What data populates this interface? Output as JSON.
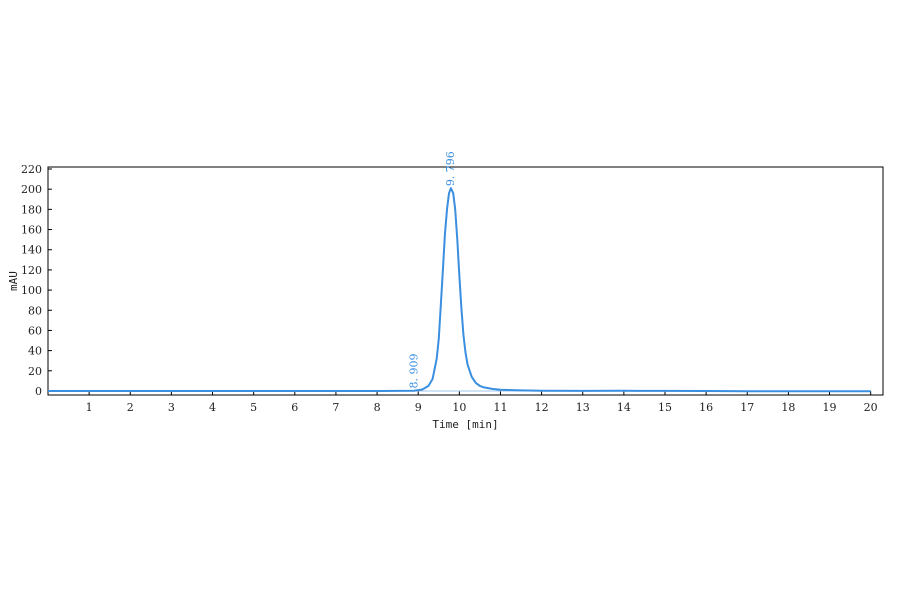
{
  "chart_data": {
    "type": "line",
    "xlabel": "Time [min]",
    "ylabel": "mAU",
    "xlim": [
      0,
      20.3
    ],
    "ylim": [
      -4,
      222
    ],
    "x_ticks": [
      1,
      2,
      3,
      4,
      5,
      6,
      7,
      8,
      9,
      10,
      11,
      12,
      13,
      14,
      15,
      16,
      17,
      18,
      19,
      20
    ],
    "y_ticks": [
      0,
      20,
      40,
      60,
      80,
      100,
      120,
      140,
      160,
      180,
      200,
      220
    ],
    "grid": false,
    "series": [
      {
        "color": "#3a8fe0",
        "x": [
          0.0,
          2.0,
          4.0,
          6.0,
          8.0,
          8.9,
          9.1,
          9.25,
          9.35,
          9.45,
          9.5,
          9.55,
          9.6,
          9.65,
          9.7,
          9.75,
          9.796,
          9.85,
          9.9,
          9.95,
          10.0,
          10.05,
          10.1,
          10.15,
          10.2,
          10.3,
          10.4,
          10.5,
          10.6,
          10.8,
          11.0,
          11.5,
          12.0,
          13.0,
          14.0,
          15.0,
          16.0,
          17.0,
          18.0,
          19.0,
          20.0
        ],
        "y": [
          0.0,
          0.0,
          0.0,
          0.0,
          0.0,
          0.3,
          1.5,
          5.0,
          12.0,
          32.0,
          52.0,
          85.0,
          120.0,
          155.0,
          180.0,
          196.0,
          201.0,
          196.0,
          180.0,
          150.0,
          115.0,
          82.0,
          56.0,
          38.0,
          26.0,
          14.0,
          8.0,
          5.0,
          3.5,
          2.0,
          1.2,
          0.6,
          0.3,
          0.1,
          0.2,
          0.1,
          0.0,
          -0.3,
          -0.3,
          -0.3,
          -0.3
        ]
      }
    ],
    "peak_labels": [
      {
        "x": 8.909,
        "y": 0.5,
        "text": "8. 909"
      },
      {
        "x": 9.796,
        "y": 201,
        "text": "9. 796"
      }
    ]
  }
}
